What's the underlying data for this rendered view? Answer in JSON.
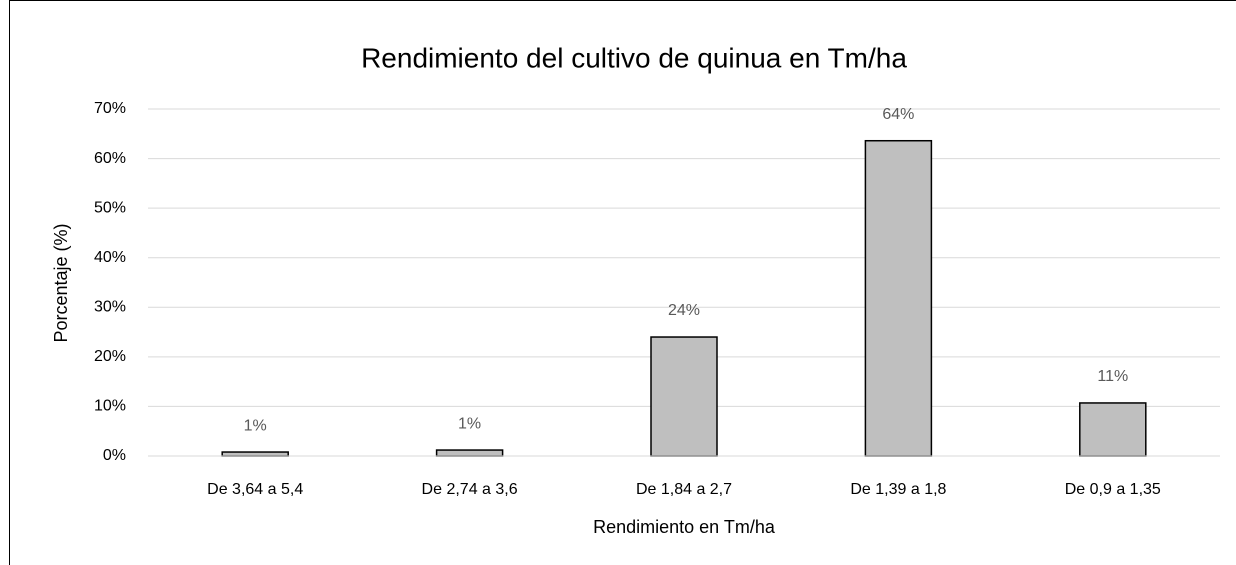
{
  "chart_data": {
    "type": "bar",
    "title": "Rendimiento del cultivo de quinua en Tm/ha",
    "x_label": "Rendimiento en Tm/ha",
    "y_label": "Porcentaje (%)",
    "categories": [
      "De 3,64 a 5,4",
      "De 2,74 a 3,6",
      "De 1,84 a 2,7",
      "De 1,39 a 1,8",
      "De 0,9 a 1,35"
    ],
    "values": [
      0.8,
      1.2,
      24.0,
      63.6,
      10.7
    ],
    "value_labels": [
      "1%",
      "1%",
      "24%",
      "64%",
      "11%"
    ],
    "color": "#bfbfbf",
    "ylim": [
      0,
      70
    ],
    "yticks": [
      {
        "value": 0,
        "label": "0%"
      },
      {
        "value": 10,
        "label": "10%"
      },
      {
        "value": 20,
        "label": "20%"
      },
      {
        "value": 30,
        "label": "30%"
      },
      {
        "value": 40,
        "label": "40%"
      },
      {
        "value": 50,
        "label": "50%"
      },
      {
        "value": 60,
        "label": "60%"
      },
      {
        "value": 70,
        "label": "70%"
      }
    ],
    "grid": true
  }
}
